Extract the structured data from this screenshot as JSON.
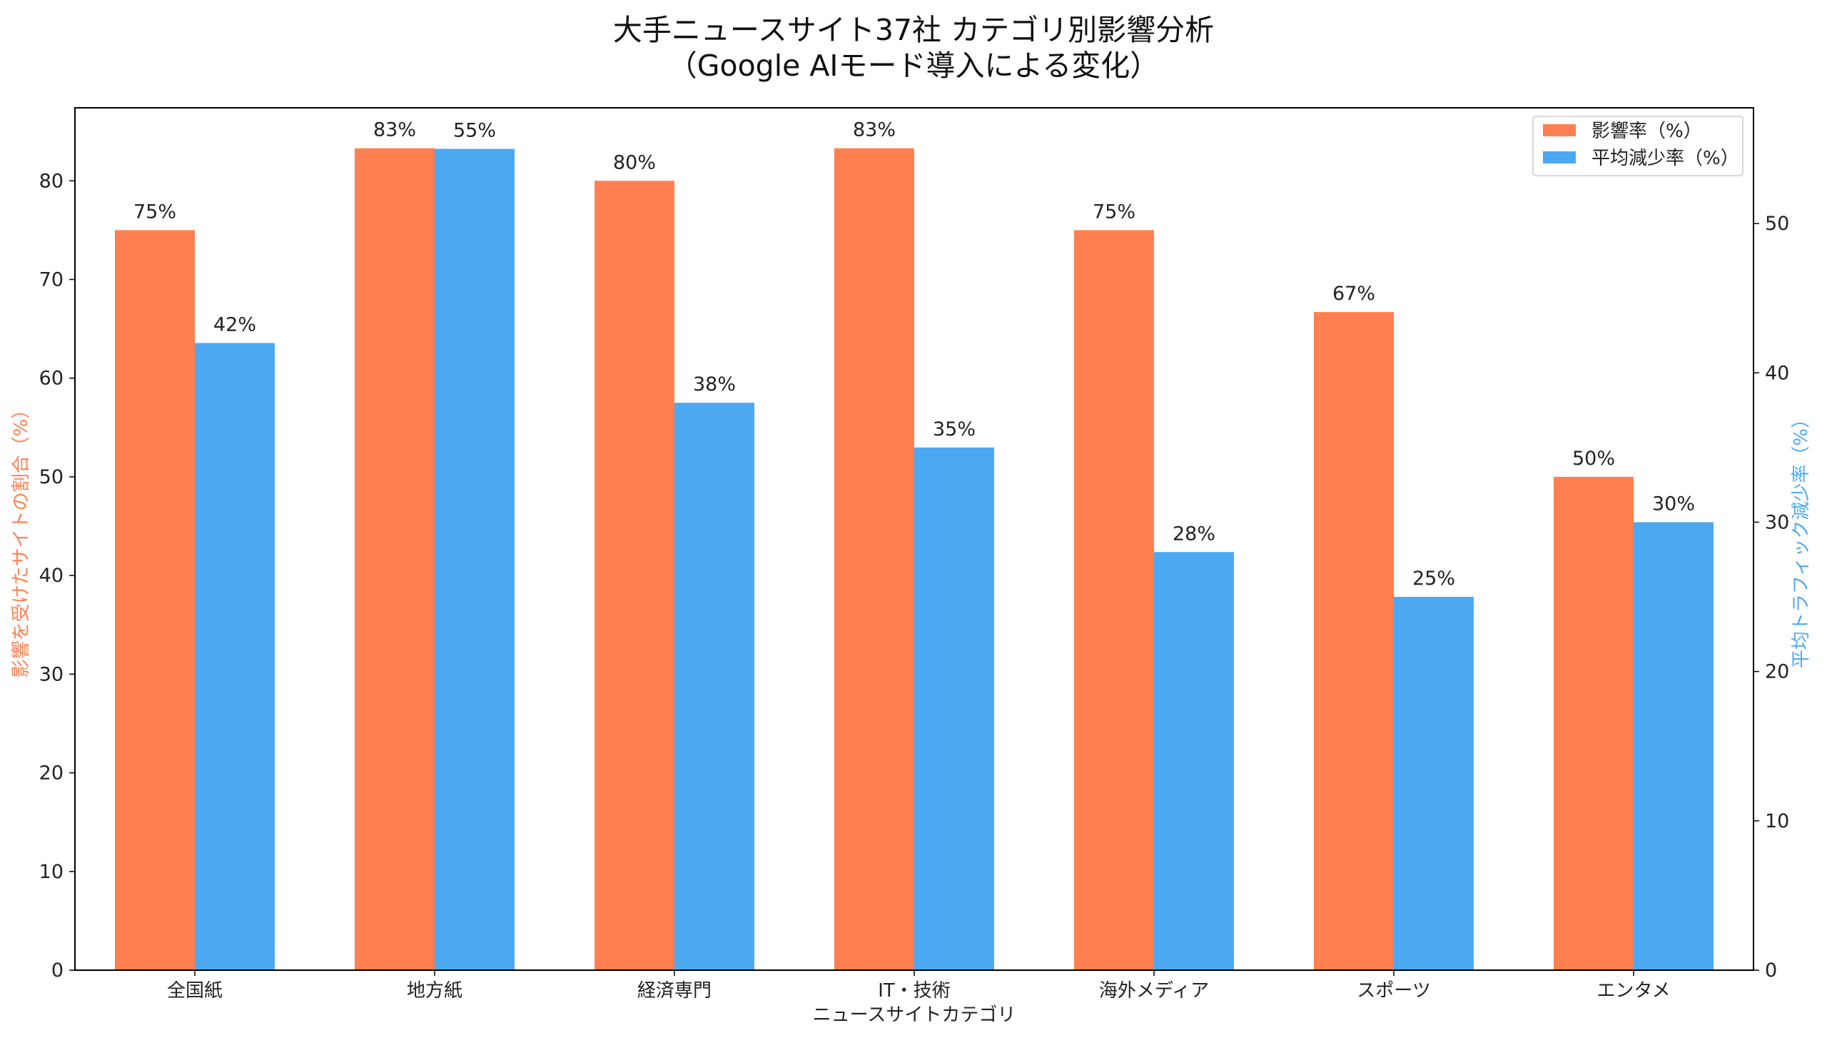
{
  "chart_data": {
    "type": "bar",
    "title": "大手ニュースサイト37社 カテゴリ別影響分析",
    "subtitle": "（Google AIモード導入による変化）",
    "xlabel": "ニュースサイトカテゴリ",
    "ylabel_left": "影響を受けたサイトの割合（%）",
    "ylabel_right": "平均トラフィック減少率（%）",
    "categories": [
      "全国紙",
      "地方紙",
      "経済専門",
      "IT・技術",
      "海外メディア",
      "スポーツ",
      "エンタメ"
    ],
    "series": [
      {
        "name": "影響率（%）",
        "axis": "left",
        "color": "#FF7F50",
        "values": [
          75,
          83.3,
          80,
          83.3,
          75,
          66.7,
          50
        ],
        "labels": [
          "75%",
          "83%",
          "80%",
          "83%",
          "75%",
          "67%",
          "50%"
        ]
      },
      {
        "name": "平均減少率（%）",
        "axis": "right",
        "color": "#4DA8F2",
        "values": [
          42,
          55,
          38,
          35,
          28,
          25,
          30
        ],
        "labels": [
          "42%",
          "55%",
          "38%",
          "35%",
          "28%",
          "25%",
          "30%"
        ]
      }
    ],
    "ylim_left": [
      0,
      87.4
    ],
    "yticks_left": [
      0,
      10,
      20,
      30,
      40,
      50,
      60,
      70,
      80
    ],
    "ylim_right": [
      0,
      57.75
    ],
    "yticks_right": [
      0,
      10,
      20,
      30,
      40,
      50
    ],
    "grid": false,
    "legend_position": "top-right",
    "left_axis_label_color": "#FF7F50",
    "right_axis_label_color": "#4DA8F2"
  }
}
